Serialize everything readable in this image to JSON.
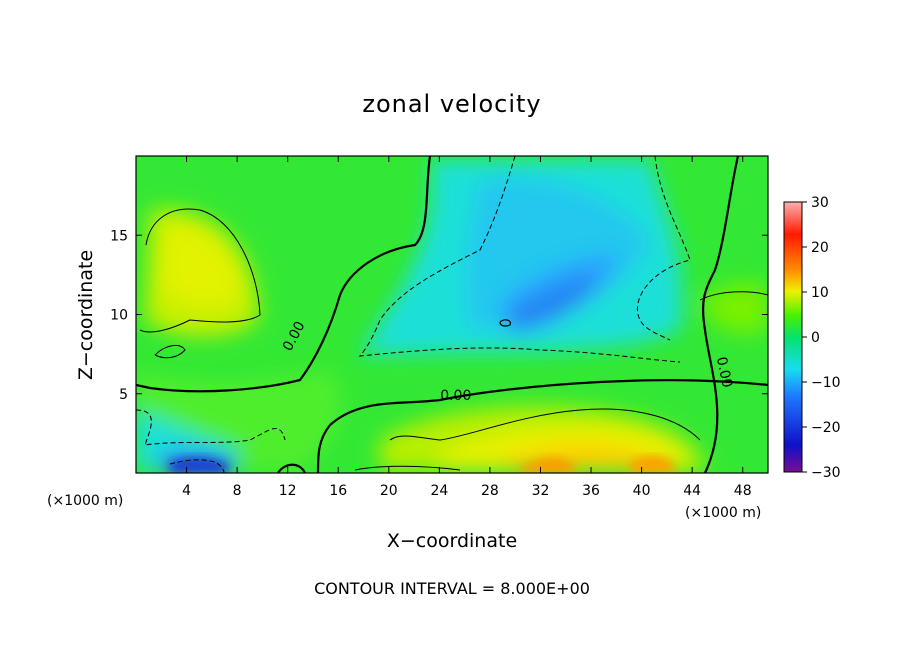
{
  "chart_data": {
    "type": "heatmap",
    "title": "zonal velocity",
    "xlabel": "X−coordinate",
    "ylabel": "Z−coordinate",
    "x_units_left": "(×1000 m)",
    "x_units_right": "(×1000 m)",
    "footer": "CONTOUR INTERVAL = 8.000E+00",
    "xlim": [
      0,
      50
    ],
    "ylim": [
      0,
      20
    ],
    "x_ticks": [
      4,
      8,
      12,
      16,
      20,
      24,
      28,
      32,
      36,
      40,
      44,
      48
    ],
    "y_ticks": [
      5,
      10,
      15
    ],
    "colorbar": {
      "range": [
        -30,
        30
      ],
      "ticks": [
        30,
        20,
        10,
        0,
        -10,
        -20,
        -30
      ],
      "tick_labels": [
        "30",
        "20",
        "10",
        "0",
        "−10",
        "−20",
        "−30"
      ],
      "colors": [
        "#7a0e96",
        "#1010c8",
        "#1e78ff",
        "#18dcf0",
        "#05e26a",
        "#48f200",
        "#f0f000",
        "#ff8a00",
        "#ff1a00",
        "#ffb0b0"
      ]
    },
    "contour_labels": [
      {
        "text": "0.00",
        "x": 12.8,
        "y": 8.5
      },
      {
        "text": "0.00",
        "x": 25.3,
        "y": 4.6
      },
      {
        "text": "0.00",
        "x": 46.2,
        "y": 6.3
      }
    ],
    "features": [
      {
        "name": "positive-core-upper-left",
        "x": 4.5,
        "y": 13.5,
        "value": 10
      },
      {
        "name": "negative-core-upper-center",
        "x": 31,
        "y": 11.5,
        "value": -14
      },
      {
        "name": "positive-core-lower-center",
        "x": 34,
        "y": 1.5,
        "value": 12
      },
      {
        "name": "negative-core-lower-left",
        "x": 5,
        "y": 0.5,
        "value": -20
      },
      {
        "name": "negative-spot-lower-left",
        "x": 1.5,
        "y": 2.5,
        "value": -8
      }
    ]
  }
}
